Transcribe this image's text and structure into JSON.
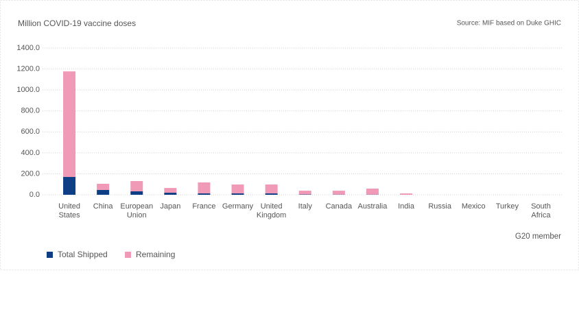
{
  "chart_data": {
    "type": "stacked-bar",
    "title": "Million COVID-19 vaccine doses",
    "source": "Source: MIF based on Duke GHIC",
    "x_label": "G20 member",
    "categories": [
      "United States",
      "China",
      "European Union",
      "Japan",
      "France",
      "Germany",
      "United Kingdom",
      "Italy",
      "Canada",
      "Australia",
      "India",
      "Russia",
      "Mexico",
      "Turkey",
      "South Africa"
    ],
    "series": [
      {
        "name": "Total Shipped",
        "color": "#0e3f86",
        "values": [
          170,
          46,
          33,
          20,
          13,
          13,
          13,
          3,
          2,
          2,
          0,
          0,
          0,
          0,
          0
        ]
      },
      {
        "name": "Remaining",
        "color": "#f09ab8",
        "values": [
          1007,
          59,
          98,
          45,
          105,
          85,
          85,
          36,
          37,
          57,
          13,
          0,
          0,
          0,
          0
        ]
      }
    ],
    "ylim": [
      0,
      1400
    ],
    "yticks": [
      {
        "value": 0,
        "label": "0.0"
      },
      {
        "value": 200,
        "label": "200.0"
      },
      {
        "value": 400,
        "label": "400.0"
      },
      {
        "value": 600,
        "label": "600.0"
      },
      {
        "value": 800,
        "label": "800.0"
      },
      {
        "value": 1000,
        "label": "1000.0"
      },
      {
        "value": 1200,
        "label": "1200.0"
      },
      {
        "value": 1400,
        "label": "1400.0"
      }
    ],
    "grid": true
  }
}
